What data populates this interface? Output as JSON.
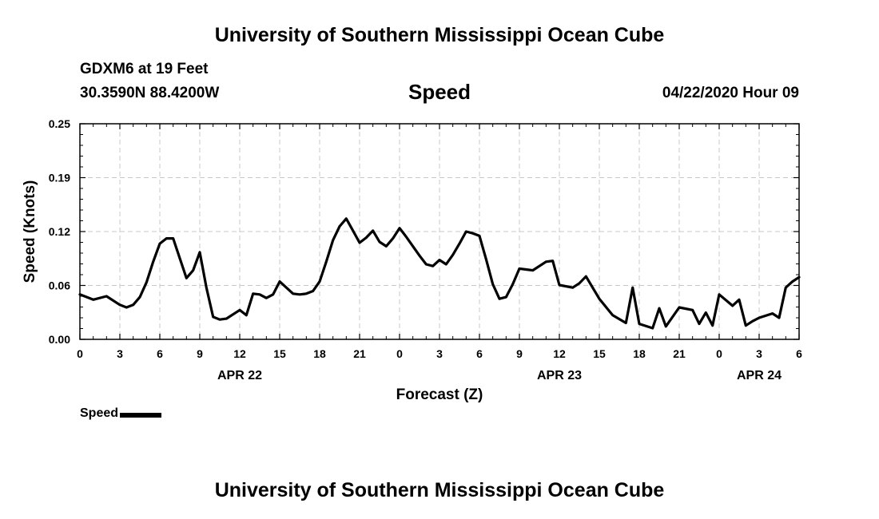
{
  "header": {
    "title": "University of Southern Mississippi Ocean Cube",
    "station": "GDXM6 at 19 Feet",
    "coords": "30.3590N 88.4200W",
    "variable": "Speed",
    "datetime": "04/22/2020 Hour 09"
  },
  "footer": {
    "title": "University of Southern Mississippi Ocean Cube"
  },
  "legend": {
    "label": "Speed"
  },
  "chart_data": {
    "type": "line",
    "title": "Speed",
    "xlabel": "Forecast (Z)",
    "ylabel": "Speed (Knots)",
    "xlim": [
      0,
      54
    ],
    "ylim": [
      0,
      0.25
    ],
    "yticks": [
      0.0,
      0.06,
      0.12,
      0.19,
      0.25
    ],
    "ytick_labels": [
      "0.00",
      "0.06",
      "0.12",
      "0.19",
      "0.25"
    ],
    "xticks": [
      0,
      3,
      6,
      9,
      12,
      15,
      18,
      21,
      24,
      27,
      30,
      33,
      36,
      39,
      42,
      45,
      48,
      51,
      54
    ],
    "xtick_labels": [
      "0",
      "3",
      "6",
      "9",
      "12",
      "15",
      "18",
      "21",
      "0",
      "3",
      "6",
      "9",
      "12",
      "15",
      "18",
      "21",
      "0",
      "3",
      "6"
    ],
    "date_labels": [
      {
        "hour": 12,
        "label": "APR 22"
      },
      {
        "hour": 36,
        "label": "APR 23"
      },
      {
        "hour": 51,
        "label": "APR 24"
      }
    ],
    "grid": true,
    "series": [
      {
        "name": "Speed",
        "x": [
          0,
          1,
          2,
          3,
          4,
          5,
          6,
          7,
          8,
          9,
          10,
          11,
          12,
          13,
          14,
          15,
          16,
          17,
          18,
          19,
          20,
          21,
          22,
          23,
          24,
          25,
          26,
          27,
          28,
          29,
          30,
          31,
          32,
          33,
          34,
          35,
          36,
          37,
          38,
          39,
          40,
          41,
          42,
          43,
          44,
          45,
          46,
          47,
          48,
          49,
          50,
          51,
          52,
          53,
          54,
          3.5,
          4.5,
          5.5,
          6.5,
          7.5,
          8.5,
          9.5,
          10.5,
          12.5,
          13.5,
          14.5,
          16.5,
          17.5,
          18.5,
          19.5,
          20.5,
          21.5,
          22.5,
          23.5,
          24.5,
          25.5,
          26.5,
          27.5,
          28.5,
          29.5,
          30.5,
          31.5,
          32.5,
          33.5,
          35.5,
          37.5,
          41.5,
          43.5,
          46.5,
          47.5,
          49.5,
          50.5,
          52.5,
          53.5
        ],
        "values": [
          0.052,
          0.046,
          0.05,
          0.04,
          0.04,
          0.066,
          0.111,
          0.117,
          0.071,
          0.101,
          0.026,
          0.024,
          0.034,
          0.053,
          0.048,
          0.067,
          0.053,
          0.053,
          0.067,
          0.115,
          0.14,
          0.112,
          0.126,
          0.108,
          0.129,
          0.108,
          0.087,
          0.092,
          0.098,
          0.125,
          0.12,
          0.064,
          0.049,
          0.082,
          0.08,
          0.09,
          0.063,
          0.06,
          0.073,
          0.047,
          0.028,
          0.019,
          0.018,
          0.013,
          0.015,
          0.037,
          0.034,
          0.031,
          0.052,
          0.039,
          0.016,
          0.025,
          0.03,
          0.06,
          0.072,
          0.037,
          0.049,
          0.09,
          0.117,
          0.094,
          0.08,
          0.06,
          0.023,
          0.028,
          0.052,
          0.052,
          0.052,
          0.056,
          0.09,
          0.131,
          0.126,
          0.118,
          0.113,
          0.117,
          0.119,
          0.097,
          0.085,
          0.087,
          0.111,
          0.123,
          0.093,
          0.047,
          0.064,
          0.081,
          0.091,
          0.065,
          0.06,
          0.036,
          0.018,
          0.016,
          0.046,
          0.021,
          0.025,
          0.067
        ]
      }
    ]
  }
}
